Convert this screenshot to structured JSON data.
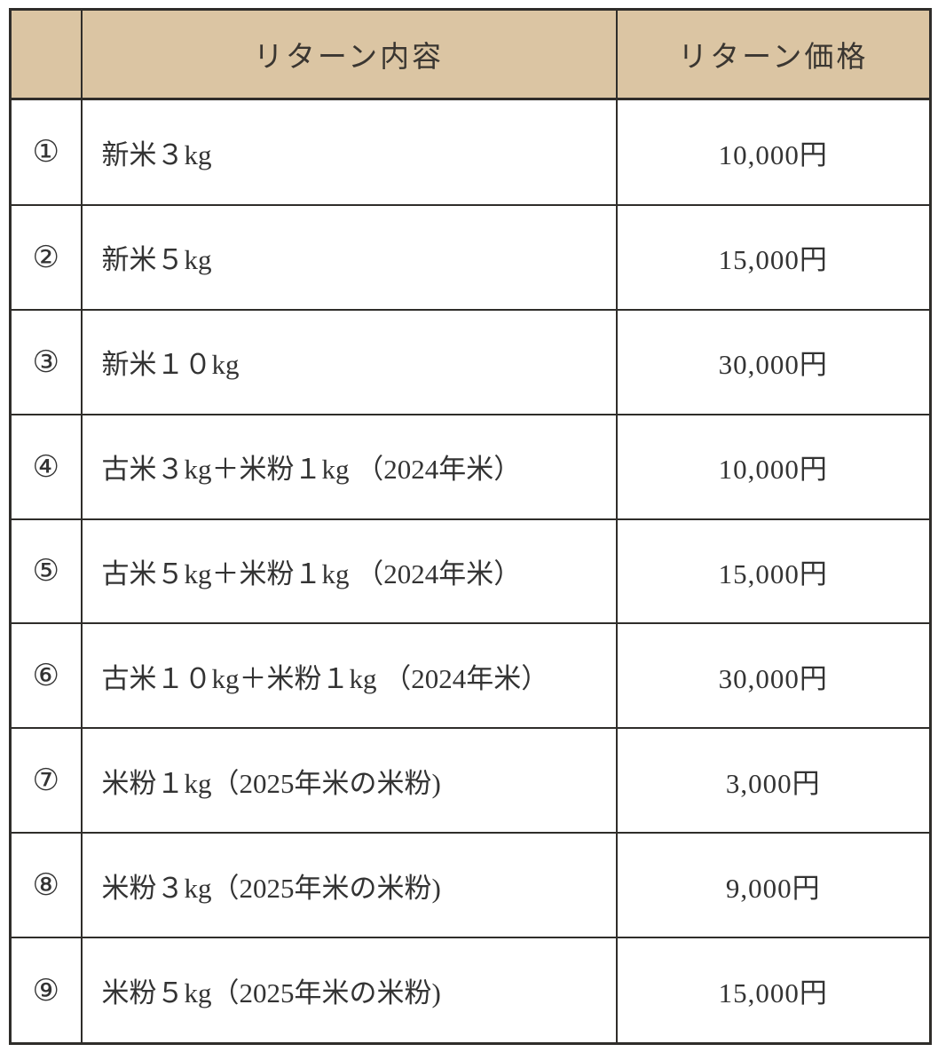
{
  "table": {
    "headers": {
      "number": "",
      "content": "リターン内容",
      "price": "リターン価格"
    },
    "rows": [
      {
        "no": "①",
        "content": "新米３kg",
        "price": "10,000円"
      },
      {
        "no": "②",
        "content": "新米５kg",
        "price": "15,000円"
      },
      {
        "no": "③",
        "content": "新米１０kg",
        "price": "30,000円"
      },
      {
        "no": "④",
        "content": "古米３kg＋米粉１kg （2024年米）",
        "price": "10,000円"
      },
      {
        "no": "⑤",
        "content": "古米５kg＋米粉１kg （2024年米）",
        "price": "15,000円"
      },
      {
        "no": "⑥",
        "content": "古米１０kg＋米粉１kg （2024年米）",
        "price": "30,000円"
      },
      {
        "no": "⑦",
        "content": "米粉１kg（2025年米の米粉)",
        "price": "3,000円"
      },
      {
        "no": "⑧",
        "content": "米粉３kg（2025年米の米粉)",
        "price": "9,000円"
      },
      {
        "no": "⑨",
        "content": "米粉５kg（2025年米の米粉)",
        "price": "15,000円"
      }
    ],
    "style": {
      "header_bg": "#dbc5a3",
      "header_text": "#3a3631",
      "border_color": "#2f2d2a",
      "text_color": "#333333",
      "page_bg": "#ffffff"
    }
  },
  "chart_data": {
    "type": "table",
    "columns": [
      "",
      "リターン内容",
      "リターン価格"
    ],
    "rows": [
      [
        "①",
        "新米３kg",
        "10,000円"
      ],
      [
        "②",
        "新米５kg",
        "15,000円"
      ],
      [
        "③",
        "新米１０kg",
        "30,000円"
      ],
      [
        "④",
        "古米３kg＋米粉１kg （2024年米）",
        "10,000円"
      ],
      [
        "⑤",
        "古米５kg＋米粉１kg （2024年米）",
        "15,000円"
      ],
      [
        "⑥",
        "古米１０kg＋米粉１kg （2024年米）",
        "30,000円"
      ],
      [
        "⑦",
        "米粉１kg（2025年米の米粉)",
        "3,000円"
      ],
      [
        "⑧",
        "米粉３kg（2025年米の米粉)",
        "9,000円"
      ],
      [
        "⑨",
        "米粉５kg（2025年米の米粉)",
        "15,000円"
      ]
    ]
  }
}
